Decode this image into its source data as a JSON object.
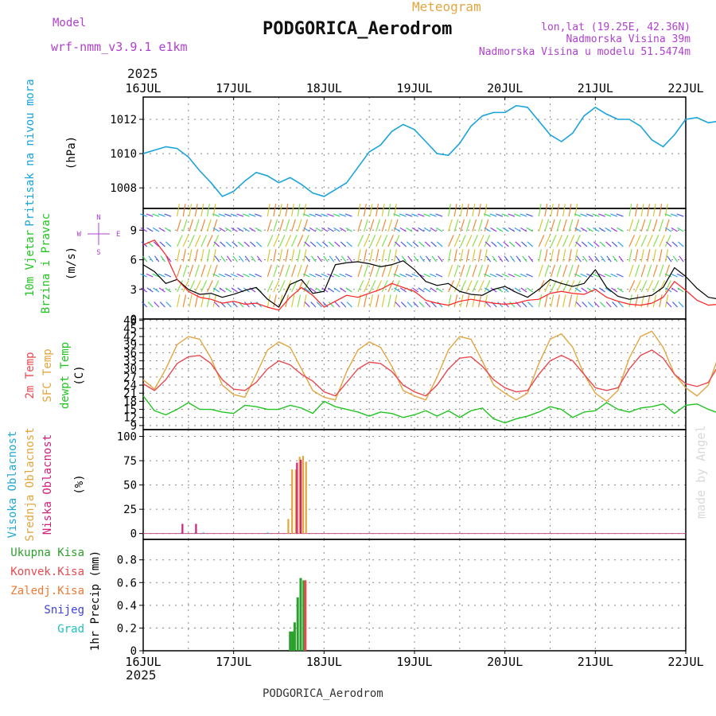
{
  "header": {
    "model_label": "Model",
    "model_name": "wrf-nmm_v3.9.1 e1km",
    "product": "Meteogram",
    "station": "PODGORICA_Aerodrom",
    "coords": "lon,lat (19.25E, 42.36N)",
    "elevation": "Nadmorska Visina 39m",
    "model_elevation": "Nadmorska Visina u modelu 51.5474m",
    "year": "2025",
    "footer_station": "PODGORICA_Aerodrom",
    "credit": "made by Angel"
  },
  "colors": {
    "pressure": "#1aa3dc",
    "t2m": "#e8494f",
    "sfc": "#e3a53f",
    "dewpt": "#22c422",
    "high_cloud": "#20a8d8",
    "mid_cloud": "#e3a53f",
    "low_cloud": "#d0207a",
    "total_precip": "#2ca02c",
    "conv_precip": "#e8494f",
    "frozen": "#f07830",
    "snow": "#4040e0",
    "graupel": "#20c0c0",
    "wind_speed": "#000000",
    "gust": "#ff2020",
    "compass": "#b040d0"
  },
  "chart_data": [
    {
      "id": "pressure",
      "type": "line",
      "ylabel_series": "Pritisak na nivou mora",
      "ylabel_unit": "(hPa)",
      "xlabels": [
        "16JUL",
        "17JUL",
        "18JUL",
        "19JUL",
        "20JUL",
        "21JUL",
        "22JUL"
      ],
      "yticks": [
        1008,
        1010,
        1012
      ],
      "ylim": [
        1006.8,
        1013.3
      ],
      "x_step_hours": 3,
      "series": [
        {
          "values": [
            1010.0,
            1010.2,
            1010.4,
            1010.3,
            1009.8,
            1009.0,
            1008.3,
            1007.5,
            1007.8,
            1008.4,
            1008.9,
            1008.7,
            1008.3,
            1008.6,
            1008.2,
            1007.7,
            1007.5,
            1007.9,
            1008.3,
            1009.2,
            1010.1,
            1010.5,
            1011.3,
            1011.7,
            1011.4,
            1010.7,
            1010.0,
            1009.9,
            1010.6,
            1011.6,
            1012.2,
            1012.4,
            1012.4,
            1012.8,
            1012.7,
            1011.9,
            1011.1,
            1010.7,
            1011.2,
            1012.2,
            1012.7,
            1012.3,
            1012.0,
            1012.0,
            1011.6,
            1010.8,
            1010.4,
            1011.1,
            1012.0,
            1012.1,
            1011.8,
            1011.9,
            1012.2,
            1011.9,
            1011.2,
            1010.4,
            1010.2,
            1011.0,
            1011.9,
            1012.0
          ]
        }
      ]
    },
    {
      "id": "wind",
      "type": "line",
      "ylabel_series": "10m Vjetar\nBrzina i Pravac",
      "ylabel_unit": "(m/s)",
      "compass": {
        "n": "N",
        "s": "S",
        "e": "E",
        "w": "W"
      },
      "yticks": [
        0,
        3,
        6,
        9
      ],
      "ylim": [
        0,
        11.2
      ],
      "x_step_hours": 3,
      "series": [
        {
          "values": [
            5.5,
            4.8,
            3.6,
            4.0,
            3.0,
            2.5,
            2.6,
            2.2,
            2.5,
            2.9,
            3.2,
            2.0,
            1.2,
            3.5,
            4.0,
            2.6,
            2.8,
            5.5,
            5.7,
            5.8,
            5.6,
            5.3,
            5.5,
            5.9,
            5.0,
            3.8,
            3.4,
            3.6,
            2.8,
            2.5,
            2.4,
            3.0,
            3.3,
            2.7,
            2.2,
            3.0,
            4.0,
            3.6,
            3.3,
            3.6,
            5.0,
            3.2,
            2.3,
            2.0,
            2.2,
            2.4,
            3.2,
            5.2,
            4.3,
            3.1,
            2.2,
            2.0,
            2.1,
            2.3,
            2.7,
            3.8,
            5.4,
            3.7,
            2.5,
            2.2
          ]
        },
        {
          "values": [
            7.5,
            8.0,
            6.5,
            4.0,
            2.8,
            2.2,
            2.0,
            1.6,
            1.8,
            1.5,
            1.6,
            1.2,
            0.9,
            2.2,
            3.2,
            2.4,
            1.2,
            1.8,
            2.4,
            2.2,
            2.6,
            3.0,
            3.6,
            3.2,
            2.8,
            1.9,
            1.6,
            1.4,
            1.8,
            2.0,
            1.8,
            1.6,
            1.5,
            1.6,
            1.9,
            2.0,
            2.6,
            2.8,
            2.6,
            2.5,
            3.0,
            2.2,
            1.8,
            1.5,
            1.4,
            1.6,
            2.2,
            3.8,
            2.9,
            1.9,
            1.4,
            1.5,
            1.7,
            1.9,
            2.0,
            2.6,
            3.0,
            2.4,
            1.8,
            1.6
          ]
        }
      ]
    },
    {
      "id": "temperature",
      "type": "line",
      "ylabel_series": [
        "2m Temp",
        "SFC Temp",
        "dewpt Temp"
      ],
      "ylabel_unit": "(C)",
      "yticks": [
        9,
        12,
        15,
        18,
        21,
        24,
        27,
        30,
        33,
        36,
        39,
        42,
        45,
        48
      ],
      "ylim": [
        7.5,
        48.5
      ],
      "x_step_hours": 3,
      "series": [
        {
          "name": "2m Temp",
          "values": [
            24.5,
            22.0,
            26.0,
            32.0,
            34.5,
            35.0,
            32.0,
            26.0,
            22.5,
            22.0,
            25.0,
            30.0,
            33.0,
            31.5,
            28.0,
            25.5,
            21.5,
            20.0,
            25.0,
            30.0,
            32.5,
            32.0,
            29.0,
            24.0,
            21.5,
            20.0,
            24.0,
            30.0,
            34.0,
            34.5,
            31.0,
            26.0,
            23.0,
            21.5,
            22.0,
            28.0,
            33.0,
            35.0,
            33.0,
            28.0,
            23.0,
            22.0,
            23.0,
            30.0,
            35.0,
            37.0,
            34.0,
            28.0,
            24.5,
            23.5,
            25.0,
            32.0,
            37.0,
            39.0,
            37.0,
            32.0,
            28.0,
            27.0,
            26.0,
            26.0
          ]
        },
        {
          "name": "SFC Temp",
          "values": [
            26.0,
            22.5,
            30.0,
            39.0,
            42.0,
            41.0,
            34.0,
            24.0,
            20.5,
            19.5,
            28.0,
            37.0,
            40.0,
            38.0,
            30.0,
            22.0,
            19.5,
            18.5,
            29.0,
            37.0,
            40.0,
            38.0,
            31.0,
            22.0,
            20.0,
            18.5,
            27.0,
            37.0,
            42.0,
            41.0,
            33.0,
            24.0,
            21.0,
            18.5,
            21.0,
            32.0,
            41.0,
            43.0,
            38.0,
            28.0,
            21.0,
            18.0,
            22.0,
            34.0,
            42.0,
            44.0,
            38.0,
            28.0,
            23.0,
            20.0,
            24.0,
            36.0,
            44.0,
            46.0,
            41.0,
            32.0,
            23.0,
            21.5,
            21.0,
            21.0
          ]
        },
        {
          "name": "dewpt Temp",
          "values": [
            20.0,
            14.5,
            13.0,
            15.0,
            17.5,
            15.0,
            15.0,
            14.0,
            13.5,
            16.5,
            16.0,
            15.0,
            15.0,
            16.5,
            15.5,
            13.5,
            18.0,
            16.0,
            15.0,
            14.0,
            12.5,
            14.0,
            13.5,
            12.0,
            13.0,
            14.5,
            12.5,
            14.5,
            12.0,
            14.5,
            15.5,
            11.5,
            10.0,
            11.5,
            12.5,
            14.0,
            16.0,
            15.0,
            12.0,
            14.0,
            14.5,
            17.5,
            15.0,
            14.0,
            15.5,
            16.0,
            17.0,
            13.5,
            16.5,
            17.0,
            15.0,
            13.5,
            17.0,
            16.0,
            14.5,
            13.5,
            16.0,
            17.5,
            15.5,
            12.5
          ]
        }
      ]
    },
    {
      "id": "cloud",
      "type": "bar",
      "ylabel_series": [
        "Visoka Oblacnost",
        "Srednja Oblacnost",
        "Niska Oblacnost"
      ],
      "ylabel_unit": "(%)",
      "yticks": [
        0,
        25,
        50,
        75,
        100
      ],
      "ylim": [
        -6,
        107
      ],
      "series": [
        {
          "name": "Visoka Oblacnost",
          "points": [
            [
              10.2,
              1
            ],
            [
              13.8,
              1
            ],
            [
              16.0,
              1
            ],
            [
              33.0,
              1
            ]
          ]
        },
        {
          "name": "Srednja Oblacnost",
          "points": [
            [
              38.5,
              15
            ],
            [
              39.5,
              66
            ],
            [
              40.5,
              66
            ],
            [
              41.5,
              79
            ],
            [
              42.4,
              80
            ],
            [
              43.2,
              74
            ]
          ]
        },
        {
          "name": "Niska Oblacnost",
          "points": [
            [
              10.4,
              10
            ],
            [
              14.0,
              10
            ],
            [
              40.8,
              73
            ],
            [
              41.8,
              76
            ]
          ]
        }
      ]
    },
    {
      "id": "precip",
      "type": "bar",
      "legend": [
        "Ukupna Kisa",
        "Konvek.Kisa",
        "Zaledj.Kisa",
        "Snijeg",
        "Grad"
      ],
      "ylabel": "1hr Precip (mm)",
      "yticks": [
        0,
        0.2,
        0.4,
        0.6,
        0.8
      ],
      "ylim": [
        0,
        0.98
      ],
      "series": [
        {
          "name": "Ukupna Kisa",
          "points": [
            [
              39.0,
              0.17
            ],
            [
              39.6,
              0.17
            ],
            [
              40.2,
              0.25
            ],
            [
              41.0,
              0.47
            ],
            [
              41.8,
              0.64
            ],
            [
              42.6,
              0.62
            ]
          ]
        },
        {
          "name": "Konvek.Kisa",
          "points": [
            [
              42.6,
              0.62
            ]
          ]
        }
      ]
    }
  ]
}
